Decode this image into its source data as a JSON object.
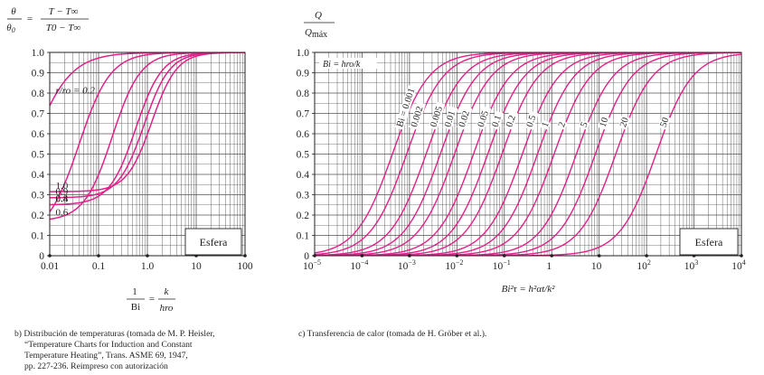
{
  "colors": {
    "curve": "#e0218a",
    "ink": "#231f20",
    "grid": "#555555"
  },
  "chart_data": [
    {
      "type": "line",
      "title": "",
      "ylabel_num": "θ",
      "ylabel_den": "θ",
      "ylabel_den_sub": "0",
      "ylabel_eq": "=",
      "ylabel_formula_num": "T − T∞",
      "ylabel_formula_den": "T0 − T∞",
      "xlabel_num": "1",
      "xlabel_den": "Bi",
      "xlabel_eq": "=",
      "xlabel_formula_num": "k",
      "xlabel_formula_den": "hro",
      "xscale": "log",
      "xlim": [
        0.01,
        100
      ],
      "ylim": [
        0,
        1
      ],
      "x_ticks": [
        "0.01",
        "0.1",
        "1.0",
        "10",
        "100"
      ],
      "y_ticks": [
        "0",
        "0.1",
        "0.2",
        "0.3",
        "0.4",
        "0.5",
        "0.6",
        "0.7",
        "0.8",
        "0.9",
        "1.0"
      ],
      "grid": true,
      "box_label": "Esfera",
      "param_label": "r/ro = 0.2",
      "series": [
        {
          "name": "0.2",
          "mid": -2.4,
          "slope": 1.1,
          "A": 0.985
        },
        {
          "name": "0.4",
          "mid": -1.4,
          "slope": 1.35,
          "A": 0.905
        },
        {
          "name": "0.6",
          "mid": -0.72,
          "slope": 1.5,
          "A": 0.83
        },
        {
          "name": "0.8",
          "mid": -0.24,
          "slope": 1.6,
          "A": 0.75
        },
        {
          "name": "0.9",
          "mid": -0.07,
          "slope": 1.65,
          "A": 0.715
        },
        {
          "name": "1.0",
          "mid": 0.09,
          "slope": 1.7,
          "A": 0.685
        }
      ]
    },
    {
      "type": "line",
      "title": "",
      "ylabel_num": "Q",
      "ylabel_den": "Q",
      "ylabel_den_sub": "máx",
      "xlabel": "Bi²τ = h²αt/k²",
      "xscale": "log",
      "xlim": [
        1e-05,
        10000
      ],
      "ylim": [
        0,
        1
      ],
      "x_ticks": [
        "10−5",
        "10−4",
        "10−3",
        "10−2",
        "10−1",
        "1",
        "10",
        "10²",
        "10³",
        "10⁴"
      ],
      "x_tick_base": [
        "10",
        "10",
        "10",
        "10",
        "10",
        "1",
        "10",
        "10",
        "10",
        "10"
      ],
      "x_tick_exp": [
        "−5",
        "−4",
        "−3",
        "−2",
        "−1",
        "",
        "",
        "2",
        "3",
        "4"
      ],
      "y_ticks": [
        "0",
        "0.1",
        "0.2",
        "0.3",
        "0.4",
        "0.5",
        "0.6",
        "0.7",
        "0.8",
        "0.9",
        "1.0"
      ],
      "grid": true,
      "box_label": "Esfera",
      "legend_text": "Bi = hro/k",
      "param_prefix": "Bi = ",
      "series": [
        {
          "name": "0.001",
          "mid": -3.36
        },
        {
          "name": "0.002",
          "mid": -3.06
        },
        {
          "name": "0.005",
          "mid": -2.65
        },
        {
          "name": "0.01",
          "mid": -2.35
        },
        {
          "name": "0.02",
          "mid": -2.05
        },
        {
          "name": "0.05",
          "mid": -1.65
        },
        {
          "name": "0.1",
          "mid": -1.35
        },
        {
          "name": "0.2",
          "mid": -1.05
        },
        {
          "name": "0.5",
          "mid": -0.62
        },
        {
          "name": "1",
          "mid": -0.3
        },
        {
          "name": "2",
          "mid": 0.05
        },
        {
          "name": "5",
          "mid": 0.52
        },
        {
          "name": "10",
          "mid": 0.92
        },
        {
          "name": "20",
          "mid": 1.35
        },
        {
          "name": "50",
          "mid": 2.2
        }
      ]
    }
  ],
  "captions": {
    "left_lines": [
      "b) Distribución de temperaturas (tomada de M. P. Heisler,",
      "“Temperature Charts for Induction and Constant",
      "Temperature Heating”, Trans. ASME 69, 1947,",
      "pp. 227-236. Reimpreso con autorización"
    ],
    "right": "c) Transferencia de calor (tomada de H. Gröber et al.)."
  }
}
